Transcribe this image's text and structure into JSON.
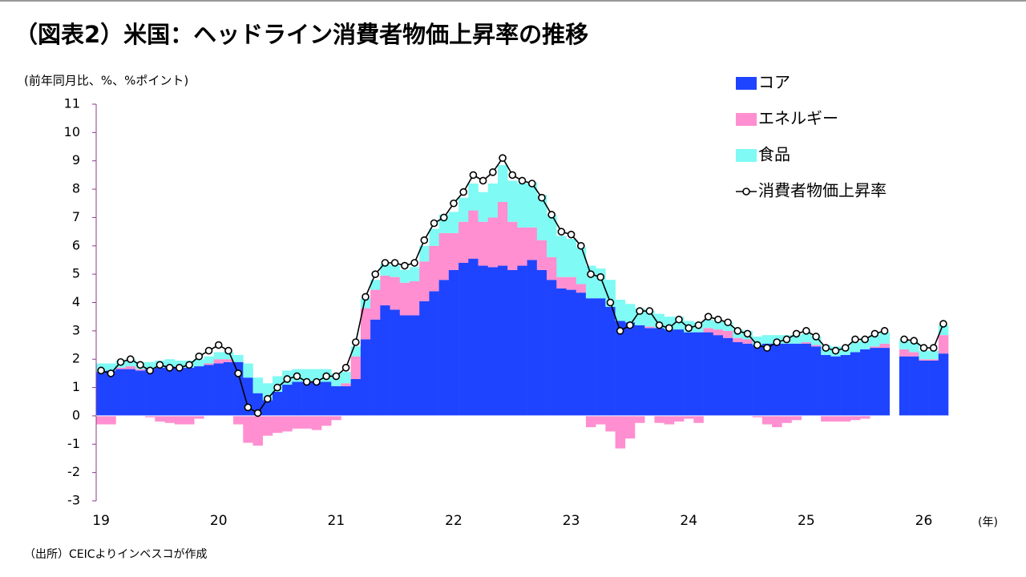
{
  "chart_data": {
    "type": "stacked-bar-line",
    "title": "（図表2）米国：ヘッドライン消費者物価上昇率の推移",
    "y_axis_label": "(前年同月比、%、%ポイント)",
    "x_unit_label": "(年)",
    "source": "（出所）CEICよりインベスコが作成",
    "categories": [
      "19",
      null,
      null,
      null,
      null,
      null,
      null,
      null,
      null,
      null,
      null,
      null,
      "20",
      null,
      null,
      null,
      null,
      null,
      null,
      null,
      null,
      null,
      null,
      null,
      "21",
      null,
      null,
      null,
      null,
      null,
      null,
      null,
      null,
      null,
      null,
      null,
      "22",
      null,
      null,
      null,
      null,
      null,
      null,
      null,
      null,
      null,
      null,
      null,
      "23",
      null,
      null,
      null,
      null,
      null,
      null,
      null,
      null,
      null,
      null,
      null,
      "24",
      null,
      null,
      null,
      null,
      null,
      null,
      null,
      null,
      null,
      null,
      null,
      "25",
      null,
      null,
      null,
      null,
      null,
      null,
      null,
      null,
      null,
      null,
      null,
      "26",
      null,
      null
    ],
    "series": [
      {
        "name": "コア",
        "color": "#1f44ff",
        "values": [
          1.55,
          1.6,
          1.65,
          1.65,
          1.6,
          1.65,
          1.7,
          1.75,
          1.7,
          1.7,
          1.75,
          1.8,
          1.85,
          1.9,
          1.9,
          1.35,
          0.8,
          0.55,
          0.85,
          1.1,
          1.2,
          1.2,
          1.2,
          1.2,
          1.05,
          1.05,
          1.3,
          2.7,
          3.4,
          3.9,
          3.75,
          3.55,
          3.55,
          4.05,
          4.4,
          4.8,
          5.15,
          5.4,
          5.55,
          5.3,
          5.25,
          5.3,
          5.15,
          5.3,
          5.5,
          5.15,
          4.8,
          4.5,
          4.45,
          4.35,
          4.15,
          4.15,
          3.85,
          3.35,
          3.3,
          3.2,
          3.1,
          3.1,
          3.05,
          3.05,
          2.95,
          2.95,
          2.95,
          2.85,
          2.75,
          2.6,
          2.55,
          2.5,
          2.55,
          2.55,
          2.55,
          2.55,
          2.55,
          2.45,
          2.15,
          2.1,
          2.15,
          2.25,
          2.35,
          2.4,
          2.4,
          null,
          2.1,
          2.1,
          1.95,
          1.95,
          2.2
        ]
      },
      {
        "name": "エネルギー",
        "color": "#ff8fd0",
        "values": [
          -0.3,
          -0.3,
          0.05,
          0.1,
          0.05,
          -0.05,
          -0.2,
          -0.25,
          -0.3,
          -0.3,
          -0.1,
          0.05,
          0.15,
          0.1,
          -0.3,
          -0.95,
          -1.05,
          -0.7,
          -0.6,
          -0.55,
          -0.45,
          -0.45,
          -0.5,
          -0.35,
          -0.15,
          0.1,
          0.8,
          1.1,
          1.05,
          1.05,
          1.15,
          1.15,
          1.2,
          1.4,
          1.6,
          1.65,
          1.3,
          1.45,
          1.7,
          1.55,
          1.75,
          2.25,
          1.7,
          1.35,
          1.15,
          1.05,
          0.8,
          0.4,
          0.45,
          0.3,
          -0.4,
          -0.3,
          -0.55,
          -1.15,
          -0.8,
          -0.25,
          0.05,
          -0.25,
          -0.3,
          -0.2,
          -0.1,
          -0.25,
          0.15,
          0.2,
          0.25,
          0.15,
          0.15,
          -0.05,
          -0.3,
          -0.4,
          -0.25,
          -0.15,
          0.05,
          0.05,
          -0.2,
          -0.2,
          -0.2,
          -0.15,
          -0.1,
          0.05,
          0.15,
          null,
          0.25,
          0.15,
          0.05,
          0.05,
          0.65
        ]
      },
      {
        "name": "食品",
        "color": "#7ffaf4",
        "values": [
          0.3,
          0.25,
          0.25,
          0.25,
          0.25,
          0.25,
          0.25,
          0.25,
          0.25,
          0.25,
          0.25,
          0.25,
          0.25,
          0.25,
          0.25,
          0.5,
          0.55,
          0.6,
          0.55,
          0.5,
          0.45,
          0.45,
          0.45,
          0.45,
          0.45,
          0.4,
          0.35,
          0.35,
          0.35,
          0.4,
          0.4,
          0.45,
          0.5,
          0.55,
          0.6,
          0.65,
          0.75,
          0.85,
          0.95,
          1.05,
          1.2,
          1.3,
          1.45,
          1.55,
          1.6,
          1.6,
          1.5,
          1.45,
          1.35,
          1.3,
          1.15,
          1.05,
          0.95,
          0.75,
          0.65,
          0.6,
          0.55,
          0.5,
          0.45,
          0.45,
          0.4,
          0.35,
          0.3,
          0.3,
          0.3,
          0.3,
          0.3,
          0.3,
          0.3,
          0.3,
          0.3,
          0.3,
          0.3,
          0.3,
          0.35,
          0.35,
          0.3,
          0.35,
          0.4,
          0.4,
          0.4,
          null,
          0.35,
          0.35,
          0.3,
          0.3,
          0.35
        ]
      },
      {
        "name": "消費者物価上昇率",
        "color": "#000000",
        "kind": "line",
        "values": [
          1.6,
          1.5,
          1.9,
          2.0,
          1.8,
          1.6,
          1.8,
          1.7,
          1.7,
          1.8,
          2.1,
          2.3,
          2.5,
          2.3,
          1.5,
          0.3,
          0.1,
          0.6,
          1.0,
          1.3,
          1.4,
          1.2,
          1.2,
          1.4,
          1.4,
          1.7,
          2.6,
          4.2,
          5.0,
          5.4,
          5.4,
          5.3,
          5.4,
          6.2,
          6.8,
          7.0,
          7.5,
          7.9,
          8.5,
          8.3,
          8.6,
          9.1,
          8.5,
          8.3,
          8.2,
          7.7,
          7.1,
          6.5,
          6.4,
          6.0,
          5.0,
          4.9,
          4.0,
          3.0,
          3.2,
          3.7,
          3.7,
          3.2,
          3.1,
          3.4,
          3.1,
          3.2,
          3.5,
          3.4,
          3.3,
          3.0,
          2.9,
          2.5,
          2.4,
          2.6,
          2.7,
          2.9,
          3.0,
          2.8,
          2.4,
          2.3,
          2.4,
          2.7,
          2.7,
          2.9,
          3.0,
          null,
          2.7,
          2.65,
          2.4,
          2.4,
          3.25
        ]
      }
    ],
    "ylim": [
      -3,
      11
    ],
    "yticks": [
      -3,
      -2,
      -1,
      0,
      1,
      2,
      3,
      4,
      5,
      6,
      7,
      8,
      9,
      10,
      11
    ],
    "negative_tick_color": "#ff0000",
    "legend": "top-right"
  }
}
